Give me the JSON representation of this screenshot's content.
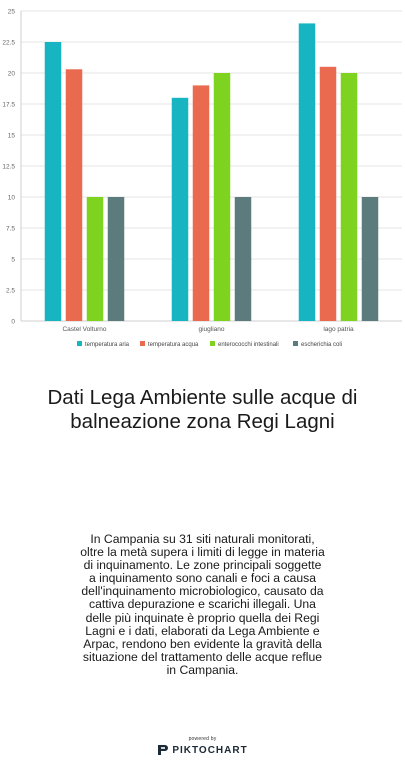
{
  "chart_data": {
    "type": "bar",
    "categories": [
      "Castel Volturno",
      "giugliano",
      "lago patria"
    ],
    "series": [
      {
        "name": "temperatura aria",
        "color": "#17b5c1",
        "values": [
          22.5,
          18,
          24
        ]
      },
      {
        "name": "temperatura acqua",
        "color": "#ea6a4f",
        "values": [
          20.3,
          19,
          20.5
        ]
      },
      {
        "name": "enterococchi intestinali",
        "color": "#7ed321",
        "values": [
          10,
          20,
          20
        ]
      },
      {
        "name": "escherichia coli",
        "color": "#5b7b7c",
        "values": [
          10,
          10,
          10
        ]
      }
    ],
    "ylim": [
      0,
      25
    ],
    "yticks": [
      "0",
      "2.5",
      "5",
      "7.5",
      "10",
      "12.5",
      "15",
      "17.5",
      "20",
      "22.5",
      "25"
    ],
    "grid": true,
    "legend_position": "bottom"
  },
  "title": "Dati Lega Ambiente sulle acque di balneazione zona Regi Lagni",
  "body": "In Campania su 31 siti naturali monitorati, oltre la metà supera i limiti di legge in materia di inquinamento. Le zone principali soggette a inquinamento sono canali e foci a causa dell'inquinamento microbiologico, causato da cattiva depurazione e scarichi illegali. Una delle più inquinate è proprio quella dei Regi Lagni e i dati, elaborati da Lega Ambiente e Arpac, rendono ben evidente la gravità della situazione del trattamento delle acque reflue in Campania.",
  "footer": {
    "powered_by": "powered by",
    "brand": "PIKTOCHART",
    "logo_icon": "piktochart-logo-icon"
  }
}
